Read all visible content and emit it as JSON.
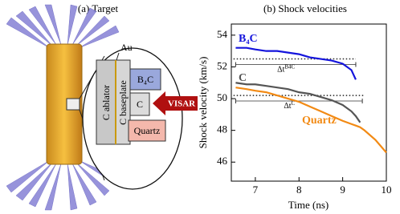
{
  "panel_a": {
    "title": "(a) Target",
    "labels": {
      "au": "Au",
      "c_ablator": "C ablator",
      "c_baseplate": "C baseplate",
      "b4c": "B₄C",
      "c": "C",
      "quartz": "Quartz",
      "visar": "VISAR"
    }
  },
  "chart_data": {
    "type": "line",
    "title": "(b) Shock velocities",
    "x_label": "Time (ns)",
    "y_label": "Shock velocity (km/s)",
    "x": [
      6.55,
      6.8,
      7.0,
      7.25,
      7.5,
      7.75,
      8.0,
      8.25,
      8.5,
      8.75,
      9.0,
      9.2,
      9.3,
      9.4,
      9.5,
      9.75,
      10.0
    ],
    "series": [
      {
        "name": "B₄C",
        "color": "#1414dc",
        "values": [
          53.2,
          53.2,
          53.1,
          53.0,
          53.0,
          52.9,
          52.8,
          52.6,
          52.5,
          52.4,
          52.2,
          51.8,
          51.2,
          null,
          null,
          null,
          null
        ]
      },
      {
        "name": "C",
        "color": "#555555",
        "values": [
          51.0,
          50.9,
          50.9,
          50.8,
          50.7,
          50.6,
          50.4,
          50.3,
          50.1,
          49.9,
          49.6,
          49.2,
          48.9,
          48.5,
          null,
          null,
          null
        ]
      },
      {
        "name": "Quartz",
        "color": "#f28a14",
        "values": [
          50.7,
          50.6,
          50.5,
          50.4,
          50.2,
          50.0,
          49.8,
          49.5,
          49.2,
          48.9,
          48.6,
          48.4,
          48.3,
          48.2,
          48.0,
          47.4,
          46.6
        ]
      }
    ],
    "reference_lines": [
      {
        "y": 52.5,
        "x": [
          6.5,
          9.3
        ]
      },
      {
        "y": 50.2,
        "x": [
          6.5,
          9.5
        ]
      }
    ],
    "annotations": [
      {
        "label": "Δt",
        "label_sup": "B4C",
        "y": 52.15,
        "x": [
          6.55,
          9.3
        ]
      },
      {
        "label": "Δt",
        "label_sup": "C",
        "y": 49.85,
        "x": [
          6.55,
          9.45
        ]
      }
    ],
    "xlim": [
      6.45,
      10.0
    ],
    "ylim": [
      44.8,
      54.7
    ],
    "xticks": [
      7,
      8,
      9,
      10
    ],
    "yticks": [
      46,
      48,
      50,
      52,
      54
    ]
  }
}
